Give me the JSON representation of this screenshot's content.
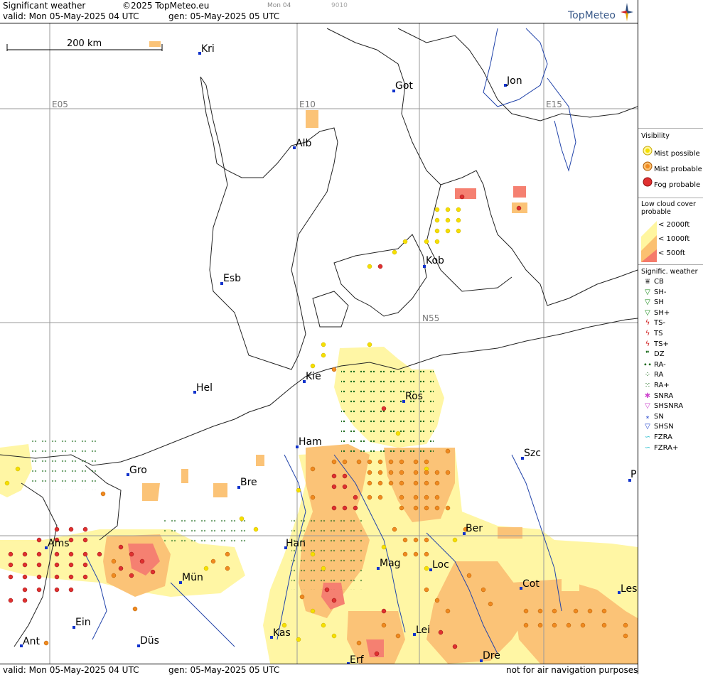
{
  "header": {
    "title": "Significant weather",
    "copyright": "©2025 TopMeteo.eu",
    "run_label": "Mon 04",
    "code": "9010",
    "valid": "valid:  Mon  05-May-2025  04 UTC",
    "gen": "gen: 05-May-2025 05 UTC",
    "logo": "TopMeteo"
  },
  "footer": {
    "valid": "valid:  Mon  05-May-2025  04 UTC",
    "gen": "gen: 05-May-2025 05 UTC",
    "note": "not for air navigation purposes"
  },
  "map": {
    "scale_label": "200 km",
    "grid_labels": [
      "E05",
      "E10",
      "E15",
      "N55"
    ],
    "cities": [
      "Kri",
      "Got",
      "Jon",
      "Alb",
      "Kob",
      "Esb",
      "Kie",
      "Hel",
      "Ros",
      "Ham",
      "Szc",
      "Gro",
      "Bre",
      "P",
      "Ber",
      "Ams",
      "Han",
      "Mag",
      "Loc",
      "Mün",
      "Cot",
      "Les",
      "Ein",
      "Kas",
      "Lei",
      "Ant",
      "Düs",
      "Dre",
      "Erf"
    ]
  },
  "legend": {
    "visibility": {
      "title": "Visibility",
      "items": [
        {
          "label": "Mist possible",
          "color": "#f5e000"
        },
        {
          "label": "Mist probable",
          "color": "#f08a20"
        },
        {
          "label": "Fog probable",
          "color": "#e03030"
        }
      ]
    },
    "low_cloud": {
      "title1": "Low cloud cover",
      "title2": "probable",
      "items": [
        {
          "label": "< 2000ft",
          "color": "#fff6a0"
        },
        {
          "label": "< 1000ft",
          "color": "#fbc070"
        },
        {
          "label": "<   500ft",
          "color": "#f57a6a"
        }
      ]
    },
    "signif": {
      "title": "Signific. weather",
      "items": [
        {
          "label": "CB",
          "icon": "cb-icon",
          "color": "#333333"
        },
        {
          "label": "SH-",
          "icon": "shower-light-icon",
          "color": "#1a8a1a"
        },
        {
          "label": "SH",
          "icon": "shower-icon",
          "color": "#1a8a1a"
        },
        {
          "label": "SH+",
          "icon": "shower-heavy-icon",
          "color": "#1a8a1a"
        },
        {
          "label": "TS-",
          "icon": "thunderstorm-light-icon",
          "color": "#d02020"
        },
        {
          "label": "TS",
          "icon": "thunderstorm-icon",
          "color": "#d02020"
        },
        {
          "label": "TS+",
          "icon": "thunderstorm-heavy-icon",
          "color": "#d02020"
        },
        {
          "label": "DZ",
          "icon": "drizzle-icon",
          "color": "#1a6a1a"
        },
        {
          "label": "RA-",
          "icon": "rain-light-icon",
          "color": "#1a6a1a"
        },
        {
          "label": "RA",
          "icon": "rain-icon",
          "color": "#1a6a1a"
        },
        {
          "label": "RA+",
          "icon": "rain-heavy-icon",
          "color": "#1a6a1a"
        },
        {
          "label": "SNRA",
          "icon": "snow-rain-icon",
          "color": "#cc44cc"
        },
        {
          "label": "SHSNRA",
          "icon": "snow-rain-shower-icon",
          "color": "#cc44cc"
        },
        {
          "label": "SN",
          "icon": "snow-icon",
          "color": "#2244cc"
        },
        {
          "label": "SHSN",
          "icon": "snow-shower-icon",
          "color": "#2244cc"
        },
        {
          "label": "FZRA",
          "icon": "freezing-rain-icon",
          "color": "#22bbcc"
        },
        {
          "label": "FZRA+",
          "icon": "freezing-rain-heavy-icon",
          "color": "#22bbcc"
        }
      ]
    }
  }
}
